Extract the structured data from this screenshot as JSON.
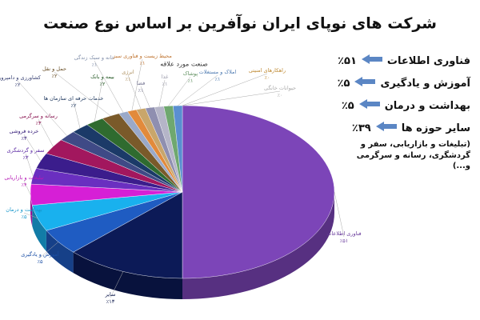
{
  "chart_data": {
    "type": "pie3d",
    "title": "شرکت های نوپای ایران نوآفرین بر اساس نوع صنعت",
    "legend_title": "صنعت مورد علاقه",
    "categories": [
      "فناوری اطلاعات",
      "سایر",
      "آموزش و یادگیری",
      "بهداشت و درمان",
      "تبلیغات و بازاریابی",
      "سفر و گردشگری",
      "خرده فروشی",
      "رسانه و سرگرمی",
      "کشاورزی و دامپروری",
      "خدمات حرفه ای سازمان ها",
      "بیمه و بانک",
      "حمل و نقل",
      "خانه و سبک زندگی",
      "محیط زیست و فناوری سبز",
      "انرژی",
      "فضا",
      "غذا",
      "پوشاک",
      "املاک و مستغلات",
      "راهکارهای امنیتی",
      "حیوانات خانگی"
    ],
    "values": [
      51,
      13,
      5,
      5,
      4,
      3,
      3,
      3,
      2,
      2,
      2,
      2,
      1,
      1,
      1,
      1,
      1,
      1,
      1,
      0,
      0
    ],
    "value_labels": [
      "٪۵۱",
      "٪۱۳",
      "٪۵",
      "٪۵",
      "٪۴",
      "٪۳",
      "٪۳",
      "٪۳",
      "٪۲",
      "٪۲",
      "٪۲",
      "٪۲",
      "٪۱",
      "٪۱",
      "٪۱",
      "٪۱",
      "٪۱",
      "٪۱",
      "٪۱",
      "٪۰",
      "٪۰"
    ],
    "colors": [
      "#7c45b8",
      "#0c1a57",
      "#1f5cc2",
      "#19b1ee",
      "#d61fd6",
      "#6a2fc0",
      "#3b1d8c",
      "#a2175e",
      "#3f4a86",
      "#1b3a68",
      "#2f6b2f",
      "#7a5a2a",
      "#9aa9c9",
      "#e28a3b",
      "#c9a66b",
      "#8f8fb0",
      "#b5b5c8",
      "#6fa86f",
      "#5a8fd0",
      "#e0a13a",
      "#c8c8c8"
    ],
    "highlights": [
      {
        "label": "فناوری اطلاعات",
        "value_label": "٪۵۱"
      },
      {
        "label": "آموزش و یادگیری",
        "value_label": "٪۵"
      },
      {
        "label": "بهداشت و درمان",
        "value_label": "٪۵"
      },
      {
        "label": "سایر حوزه ها",
        "value_label": "٪۳۹",
        "note": "(تبلیغات و بازاریابی، سفر و گردشگری، رسانه و سرگرمی و...)"
      }
    ]
  }
}
